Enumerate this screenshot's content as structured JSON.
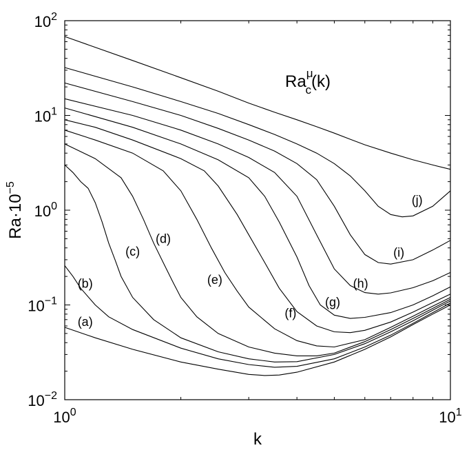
{
  "chart_data": {
    "type": "line",
    "title": "",
    "xlabel": "k",
    "ylabel": "Ra·10",
    "ylabel_exponent": "−5",
    "x_scale": "log",
    "y_scale": "log",
    "xlim": [
      1,
      10
    ],
    "ylim": [
      0.01,
      100
    ],
    "grid": false,
    "annotation": {
      "text": "Ra",
      "superscript": "μ",
      "subscript": "c",
      "suffix": "(k)"
    },
    "x_ticks": [
      {
        "value": 1,
        "base": "10",
        "exp": "0"
      },
      {
        "value": 10,
        "base": "10",
        "exp": "1"
      }
    ],
    "y_ticks": [
      {
        "value": 0.01,
        "base": "10",
        "exp": "−2"
      },
      {
        "value": 0.1,
        "base": "10",
        "exp": "−1"
      },
      {
        "value": 1,
        "base": "10",
        "exp": "0"
      },
      {
        "value": 10,
        "base": "10",
        "exp": "1"
      },
      {
        "value": 100,
        "base": "10",
        "exp": "2"
      }
    ],
    "series": [
      {
        "label": "(a)",
        "label_at": [
          1.13,
          0.065
        ],
        "points": [
          [
            1,
            0.058
          ],
          [
            1.2,
            0.045
          ],
          [
            1.5,
            0.034
          ],
          [
            2,
            0.025
          ],
          [
            2.5,
            0.021
          ],
          [
            3,
            0.0185
          ],
          [
            3.3,
            0.018
          ],
          [
            3.6,
            0.0182
          ],
          [
            4,
            0.0195
          ],
          [
            5,
            0.025
          ],
          [
            6,
            0.034
          ],
          [
            7,
            0.046
          ],
          [
            8,
            0.062
          ],
          [
            9,
            0.08
          ],
          [
            10,
            0.1
          ]
        ]
      },
      {
        "label": "(b)",
        "label_at": [
          1.13,
          0.165
        ],
        "points": [
          [
            1,
            0.26
          ],
          [
            1.05,
            0.2
          ],
          [
            1.1,
            0.15
          ],
          [
            1.2,
            0.1
          ],
          [
            1.3,
            0.075
          ],
          [
            1.5,
            0.055
          ],
          [
            2,
            0.035
          ],
          [
            2.5,
            0.027
          ],
          [
            3,
            0.0235
          ],
          [
            3.5,
            0.022
          ],
          [
            4,
            0.0225
          ],
          [
            5,
            0.027
          ],
          [
            6,
            0.036
          ],
          [
            7,
            0.048
          ],
          [
            8,
            0.064
          ],
          [
            9,
            0.083
          ],
          [
            10,
            0.105
          ]
        ]
      },
      {
        "label": "(c)",
        "label_at": [
          1.5,
          0.36
        ],
        "points": [
          [
            1,
            3.0
          ],
          [
            1.05,
            2.5
          ],
          [
            1.1,
            2.0
          ],
          [
            1.15,
            1.7
          ],
          [
            1.2,
            1.2
          ],
          [
            1.25,
            0.75
          ],
          [
            1.3,
            0.45
          ],
          [
            1.35,
            0.3
          ],
          [
            1.4,
            0.2
          ],
          [
            1.5,
            0.12
          ],
          [
            1.7,
            0.07
          ],
          [
            2,
            0.045
          ],
          [
            2.5,
            0.032
          ],
          [
            3,
            0.027
          ],
          [
            3.5,
            0.025
          ],
          [
            4,
            0.0252
          ],
          [
            5,
            0.03
          ],
          [
            6,
            0.039
          ],
          [
            7,
            0.052
          ],
          [
            8,
            0.068
          ],
          [
            9,
            0.088
          ],
          [
            10,
            0.11
          ]
        ]
      },
      {
        "label": "(d)",
        "label_at": [
          1.8,
          0.49
        ],
        "points": [
          [
            1,
            5.0
          ],
          [
            1.2,
            3.5
          ],
          [
            1.4,
            2.2
          ],
          [
            1.5,
            1.4
          ],
          [
            1.6,
            0.8
          ],
          [
            1.7,
            0.45
          ],
          [
            1.8,
            0.28
          ],
          [
            1.9,
            0.18
          ],
          [
            2,
            0.12
          ],
          [
            2.2,
            0.075
          ],
          [
            2.5,
            0.05
          ],
          [
            3,
            0.036
          ],
          [
            3.5,
            0.031
          ],
          [
            4,
            0.029
          ],
          [
            4.5,
            0.029
          ],
          [
            5,
            0.031
          ],
          [
            6,
            0.041
          ],
          [
            7,
            0.055
          ],
          [
            8,
            0.072
          ],
          [
            9,
            0.092
          ],
          [
            10,
            0.115
          ]
        ]
      },
      {
        "label": "(e)",
        "label_at": [
          2.45,
          0.18
        ],
        "points": [
          [
            1,
            7.0
          ],
          [
            1.2,
            5.5
          ],
          [
            1.5,
            4.0
          ],
          [
            1.8,
            2.6
          ],
          [
            2,
            1.6
          ],
          [
            2.2,
            0.8
          ],
          [
            2.4,
            0.4
          ],
          [
            2.6,
            0.22
          ],
          [
            2.8,
            0.14
          ],
          [
            3,
            0.095
          ],
          [
            3.5,
            0.056
          ],
          [
            4,
            0.042
          ],
          [
            4.5,
            0.037
          ],
          [
            5,
            0.036
          ],
          [
            6,
            0.043
          ],
          [
            7,
            0.058
          ],
          [
            8,
            0.076
          ],
          [
            9,
            0.097
          ],
          [
            10,
            0.12
          ]
        ]
      },
      {
        "label": "(f)",
        "label_at": [
          3.85,
          0.08
        ],
        "points": [
          [
            1,
            9.0
          ],
          [
            1.2,
            7.5
          ],
          [
            1.5,
            5.5
          ],
          [
            2,
            3.5
          ],
          [
            2.3,
            2.6
          ],
          [
            2.5,
            1.8
          ],
          [
            2.8,
            0.9
          ],
          [
            3,
            0.55
          ],
          [
            3.3,
            0.28
          ],
          [
            3.6,
            0.15
          ],
          [
            4,
            0.085
          ],
          [
            4.5,
            0.06
          ],
          [
            5,
            0.052
          ],
          [
            5.5,
            0.051
          ],
          [
            6,
            0.054
          ],
          [
            7,
            0.066
          ],
          [
            8,
            0.084
          ],
          [
            9,
            0.106
          ],
          [
            10,
            0.13
          ]
        ]
      },
      {
        "label": "(g)",
        "label_at": [
          4.95,
          0.105
        ],
        "points": [
          [
            1,
            12.0
          ],
          [
            1.5,
            7.5
          ],
          [
            2,
            5.0
          ],
          [
            2.5,
            3.4
          ],
          [
            3,
            2.2
          ],
          [
            3.3,
            1.4
          ],
          [
            3.6,
            0.75
          ],
          [
            4,
            0.32
          ],
          [
            4.3,
            0.16
          ],
          [
            4.6,
            0.1
          ],
          [
            5,
            0.078
          ],
          [
            5.5,
            0.072
          ],
          [
            6,
            0.074
          ],
          [
            7,
            0.083
          ],
          [
            8,
            0.1
          ],
          [
            9,
            0.125
          ],
          [
            10,
            0.155
          ]
        ]
      },
      {
        "label": "(h)",
        "label_at": [
          5.85,
          0.165
        ],
        "points": [
          [
            1,
            15.0
          ],
          [
            1.5,
            10.0
          ],
          [
            2,
            7.0
          ],
          [
            2.5,
            5.0
          ],
          [
            3,
            3.6
          ],
          [
            3.5,
            2.5
          ],
          [
            4,
            1.4
          ],
          [
            4.5,
            0.55
          ],
          [
            5,
            0.24
          ],
          [
            5.5,
            0.16
          ],
          [
            6,
            0.135
          ],
          [
            6.5,
            0.13
          ],
          [
            7,
            0.134
          ],
          [
            8,
            0.152
          ],
          [
            9,
            0.18
          ],
          [
            10,
            0.22
          ]
        ]
      },
      {
        "label": "(i)",
        "label_at": [
          7.35,
          0.35
        ],
        "points": [
          [
            1,
            22.0
          ],
          [
            1.5,
            14.0
          ],
          [
            2,
            10.0
          ],
          [
            2.5,
            7.3
          ],
          [
            3,
            5.5
          ],
          [
            3.5,
            4.2
          ],
          [
            4,
            3.1
          ],
          [
            4.5,
            2.1
          ],
          [
            5,
            1.1
          ],
          [
            5.5,
            0.55
          ],
          [
            6,
            0.34
          ],
          [
            6.5,
            0.28
          ],
          [
            7,
            0.27
          ],
          [
            8,
            0.3
          ],
          [
            9,
            0.38
          ],
          [
            10,
            0.48
          ]
        ]
      },
      {
        "label": "(j)",
        "label_at": [
          8.2,
          1.25
        ],
        "points": [
          [
            1,
            32.0
          ],
          [
            1.5,
            20.0
          ],
          [
            2,
            14.0
          ],
          [
            2.5,
            10.5
          ],
          [
            3,
            8.0
          ],
          [
            3.5,
            6.3
          ],
          [
            4,
            5.0
          ],
          [
            4.5,
            4.0
          ],
          [
            5,
            3.1
          ],
          [
            5.5,
            2.3
          ],
          [
            6,
            1.6
          ],
          [
            6.5,
            1.1
          ],
          [
            7,
            0.9
          ],
          [
            7.5,
            0.85
          ],
          [
            8,
            0.87
          ],
          [
            9,
            1.1
          ],
          [
            10,
            1.6
          ]
        ]
      },
      {
        "label": "",
        "points": [
          [
            1,
            68.0
          ],
          [
            1.5,
            38.0
          ],
          [
            2,
            25.0
          ],
          [
            2.5,
            18.0
          ],
          [
            3,
            13.5
          ],
          [
            3.5,
            10.8
          ],
          [
            4,
            9.0
          ],
          [
            4.5,
            7.6
          ],
          [
            5,
            6.5
          ],
          [
            5.5,
            5.6
          ],
          [
            6,
            4.9
          ],
          [
            7,
            4.0
          ],
          [
            8,
            3.4
          ],
          [
            9,
            3.0
          ],
          [
            10,
            2.7
          ]
        ]
      }
    ]
  }
}
